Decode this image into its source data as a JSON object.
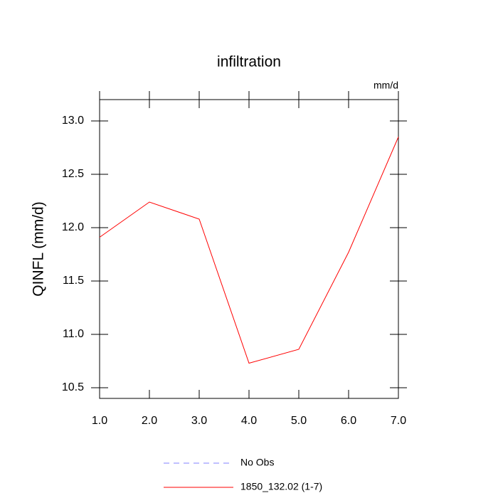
{
  "chart_data": {
    "type": "line",
    "title": "infiltration",
    "units_label": "mm/d",
    "ylabel": "QINFL  (mm/d)",
    "x": [
      1,
      2,
      3,
      4,
      5,
      6,
      7
    ],
    "series": [
      {
        "name": "No Obs",
        "color": "#8080ff",
        "dashed": true,
        "values": [
          null,
          null,
          null,
          null,
          null,
          null,
          null
        ]
      },
      {
        "name": "1850_132.02 (1-7)",
        "color": "#ff0000",
        "dashed": false,
        "values": [
          11.91,
          12.24,
          12.08,
          10.73,
          10.86,
          11.77,
          12.85
        ]
      }
    ],
    "xlim": [
      1,
      7
    ],
    "xticks": [
      {
        "value": 1,
        "label": "1.0"
      },
      {
        "value": 2,
        "label": "2.0"
      },
      {
        "value": 3,
        "label": "3.0"
      },
      {
        "value": 4,
        "label": "4.0"
      },
      {
        "value": 5,
        "label": "5.0"
      },
      {
        "value": 6,
        "label": "6.0"
      },
      {
        "value": 7,
        "label": "7.0"
      }
    ],
    "ylim": [
      10.4,
      13.2
    ],
    "yticks": [
      10.5,
      {
        "value": 11,
        "label": "11.0"
      },
      11.5,
      {
        "value": 12,
        "label": "12.0"
      },
      12.5,
      {
        "value": 13,
        "label": "13.0"
      }
    ]
  }
}
